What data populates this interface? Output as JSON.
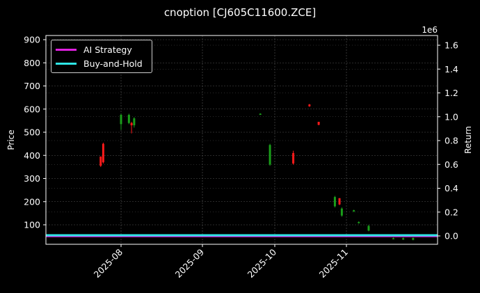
{
  "chart_data": {
    "type": "candlestick+line",
    "title": "cnoption [CJ605C11600.ZCE]",
    "xlabel": "",
    "ylabel": "Price",
    "y2label": "Return",
    "y2_offset_label": "1e6",
    "ylim": [
      15,
      915
    ],
    "y2lim": [
      -0.08,
      1.67
    ],
    "yticks": [
      100,
      200,
      300,
      400,
      500,
      600,
      700,
      800,
      900
    ],
    "y2ticks": [
      "0.0",
      "0.2",
      "0.4",
      "0.6",
      "0.8",
      "1.0",
      "1.2",
      "1.4",
      "1.6"
    ],
    "xticks": [
      "2025-08",
      "2025-09",
      "2025-10",
      "2025-11"
    ],
    "grid": true,
    "legend_position": "upper left",
    "colors": {
      "background": "#000000",
      "up": "#1a9e1a",
      "down": "#ff1a1a",
      "ai_strategy": "#e020e0",
      "buy_and_hold": "#2ee6e6",
      "grid": "#555555",
      "axes": "#ffffff"
    },
    "series": [
      {
        "name": "AI Strategy",
        "axis": "right",
        "values_approx": "flat at ~0.0 (1e6) across period"
      },
      {
        "name": "Buy-and-Hold",
        "axis": "right",
        "values_approx": "flat at ~0.0 (1e6) across period"
      }
    ],
    "candles": [
      {
        "date": "2025-07-24",
        "open": 395,
        "high": 395,
        "low": 350,
        "close": 355,
        "dir": "down"
      },
      {
        "date": "2025-07-25",
        "open": 450,
        "high": 455,
        "low": 365,
        "close": 370,
        "dir": "down"
      },
      {
        "date": "2025-08-01",
        "open": 535,
        "high": 580,
        "low": 510,
        "close": 575,
        "dir": "up"
      },
      {
        "date": "2025-08-04",
        "open": 540,
        "high": 580,
        "low": 535,
        "close": 575,
        "dir": "up"
      },
      {
        "date": "2025-08-05",
        "open": 540,
        "high": 545,
        "low": 495,
        "close": 530,
        "dir": "down"
      },
      {
        "date": "2025-08-06",
        "open": 530,
        "high": 565,
        "low": 520,
        "close": 560,
        "dir": "up"
      },
      {
        "date": "2025-09-25",
        "open": 575,
        "high": 582,
        "low": 575,
        "close": 580,
        "dir": "up"
      },
      {
        "date": "2025-09-29",
        "open": 360,
        "high": 450,
        "low": 355,
        "close": 445,
        "dir": "up"
      },
      {
        "date": "2025-10-09",
        "open": 410,
        "high": 420,
        "low": 360,
        "close": 365,
        "dir": "down"
      },
      {
        "date": "2025-10-16",
        "open": 620,
        "high": 622,
        "low": 610,
        "close": 612,
        "dir": "down"
      },
      {
        "date": "2025-10-20",
        "open": 545,
        "high": 545,
        "low": 530,
        "close": 532,
        "dir": "down"
      },
      {
        "date": "2025-10-27",
        "open": 180,
        "high": 225,
        "low": 175,
        "close": 220,
        "dir": "up"
      },
      {
        "date": "2025-10-29",
        "open": 215,
        "high": 215,
        "low": 185,
        "close": 188,
        "dir": "down"
      },
      {
        "date": "2025-10-30",
        "open": 140,
        "high": 175,
        "low": 135,
        "close": 170,
        "dir": "up"
      },
      {
        "date": "2025-11-04",
        "open": 158,
        "high": 165,
        "low": 155,
        "close": 163,
        "dir": "up"
      },
      {
        "date": "2025-11-06",
        "open": 108,
        "high": 115,
        "low": 105,
        "close": 112,
        "dir": "up"
      },
      {
        "date": "2025-11-10",
        "open": 75,
        "high": 100,
        "low": 72,
        "close": 95,
        "dir": "up"
      },
      {
        "date": "2025-11-20",
        "open": 40,
        "high": 45,
        "low": 38,
        "close": 42,
        "dir": "up"
      },
      {
        "date": "2025-11-24",
        "open": 36,
        "high": 45,
        "low": 35,
        "close": 42,
        "dir": "up"
      },
      {
        "date": "2025-11-28",
        "open": 35,
        "high": 45,
        "low": 33,
        "close": 43,
        "dir": "up"
      }
    ]
  },
  "legend": {
    "items": [
      {
        "label": "AI Strategy",
        "color": "#e020e0"
      },
      {
        "label": "Buy-and-Hold",
        "color": "#2ee6e6"
      }
    ]
  }
}
